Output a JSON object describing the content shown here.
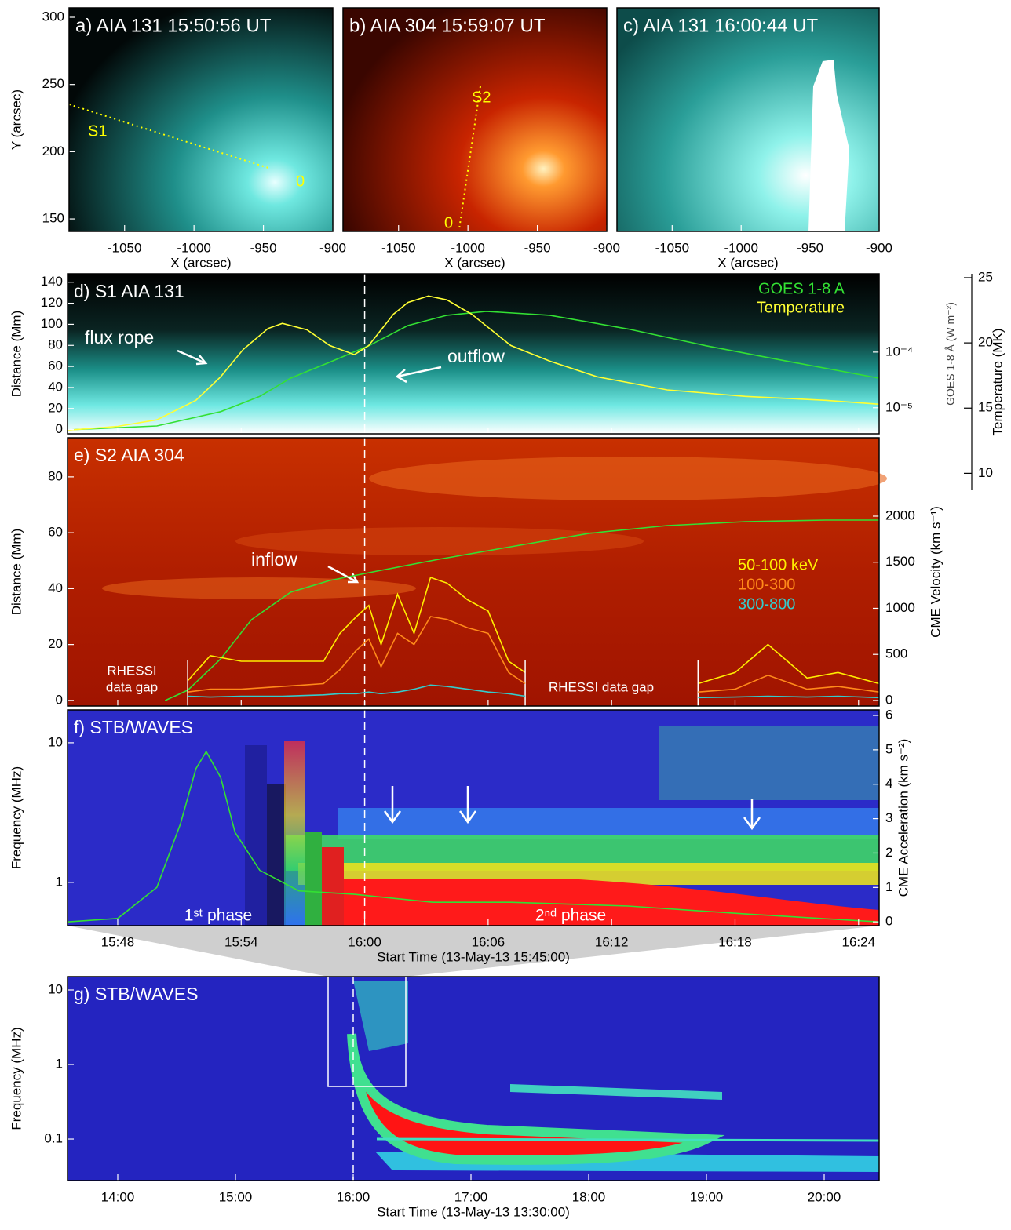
{
  "chart_data": [
    {
      "type": "image",
      "title": "a) AIA 131 15:50:56 UT",
      "xlabel": "X (arcsec)",
      "ylabel": "Y (arcsec)",
      "xlim": [
        -1090,
        -900
      ],
      "xticks": [
        -1050,
        -1000,
        -950,
        -900
      ],
      "ylim": [
        140.7,
        307
      ],
      "yticks": [
        150,
        200,
        250,
        300
      ],
      "annotations": [
        "S1",
        "0"
      ]
    },
    {
      "type": "image",
      "title": "b) AIA 304 15:59:07 UT",
      "xlabel": "X (arcsec)",
      "xlim": [
        -1090,
        -900
      ],
      "xticks": [
        -1050,
        -1000,
        -950,
        -900
      ],
      "annotations": [
        "S2",
        "0"
      ]
    },
    {
      "type": "image",
      "title": "c) AIA 131 16:00:44 UT",
      "xlabel": "X (arcsec)",
      "xlim": [
        -1090,
        -900
      ],
      "xticks": [
        -1050,
        -1000,
        -950,
        -900
      ]
    },
    {
      "type": "line",
      "title": "d) S1 AIA 131",
      "ylabel": "Distance (Mm)",
      "y2label": "GOES 1-8 Å (W m⁻²)",
      "y3label": "Temperature (MK)",
      "xlim": [
        0.56,
        40
      ],
      "ylim": [
        -4,
        148
      ],
      "yticks": [
        0,
        20,
        40,
        60,
        80,
        100,
        120,
        140
      ],
      "y2lim": [
        3.4e-06,
        0.00256
      ],
      "y2log": true,
      "y2ticks": [
        {
          "value": 1e-05,
          "label": "10⁻⁵"
        },
        {
          "value": 0.0001,
          "label": "10⁻⁴"
        }
      ],
      "y3lim": [
        8.7,
        25.3
      ],
      "y3ticks": [
        10,
        15,
        20,
        25
      ],
      "vline": 15,
      "annotations": [
        "flux rope",
        "outflow"
      ],
      "series": [
        {
          "name": "GOES 1-8 A",
          "color": "#33e033",
          "axis": "y2",
          "x": [
            0.56,
            4.9,
            8.0,
            9.9,
            11.4,
            13.3,
            15.2,
            17.1,
            19.0,
            20.9,
            24.0,
            27.8,
            31.6,
            35.4,
            40.0
          ],
          "values": [
            4e-06,
            4.7e-06,
            8.5e-06,
            1.6e-05,
            3.4e-05,
            6.6e-05,
            0.00013,
            0.0003,
            0.00046,
            0.00054,
            0.00046,
            0.00026,
            0.00013,
            7e-05,
            3.4e-05
          ]
        },
        {
          "name": "Temperature",
          "color": "#ffff33",
          "axis": "y3",
          "x": [
            0.56,
            3,
            4.9,
            6.8,
            8,
            9.1,
            10.3,
            11,
            12.2,
            13.3,
            14.5,
            15.2,
            16.4,
            17.1,
            18.1,
            19,
            20.2,
            22.1,
            24,
            26.3,
            29.7,
            33.5,
            37.4,
            40
          ],
          "values": [
            13.3,
            13.6,
            14.1,
            15.6,
            17.4,
            19.5,
            21.1,
            21.5,
            21.0,
            19.8,
            19.1,
            19.8,
            22.2,
            23.1,
            23.6,
            23.3,
            22.2,
            19.8,
            18.6,
            17.4,
            16.4,
            15.9,
            15.6,
            15.3
          ]
        }
      ]
    },
    {
      "type": "line",
      "title": "e) S2 AIA 304",
      "ylabel": "Distance (Mm)",
      "y2label": "CME Velocity (km s⁻¹)",
      "xlim": [
        0.56,
        40
      ],
      "ylim": [
        -2,
        94
      ],
      "yticks": [
        0,
        20,
        40,
        60,
        80
      ],
      "y2lim": [
        -60,
        2851
      ],
      "y2ticks": [
        0,
        500,
        1000,
        1500,
        2000
      ],
      "vline": 15,
      "annotations": [
        "inflow",
        "RHESSI",
        "data gap",
        "RHESSI data gap"
      ],
      "series": [
        {
          "color": "#33e033",
          "axis": "y2",
          "x": [
            5.3,
            6.4,
            8,
            9.5,
            11.4,
            13.3,
            15.6,
            18.6,
            22.1,
            25.9,
            29.7,
            33.5,
            37.4,
            40
          ],
          "values": [
            0,
            111,
            451,
            877,
            1174,
            1302,
            1404,
            1532,
            1668,
            1813,
            1898,
            1940,
            1957,
            1957
          ]
        },
        {
          "name": "50-100 keV",
          "color": "#ffee00",
          "x": [
            6.4,
            7.5,
            9,
            11,
            13,
            13.8,
            14.6,
            15.2,
            15.8,
            16.6,
            17.4,
            18.2,
            19,
            20,
            21,
            22,
            22.8,
            27,
            31.2,
            33,
            34.6,
            36.5,
            38,
            40
          ],
          "values": [
            7,
            16,
            14,
            14,
            14,
            24,
            30,
            34,
            20,
            38,
            24,
            44,
            42,
            36,
            32,
            14,
            10,
            null,
            6,
            10,
            20,
            8,
            10,
            6
          ]
        },
        {
          "name": "100-300",
          "color": "#ff8a1a",
          "x": [
            6.4,
            7.5,
            9,
            11,
            13,
            13.8,
            14.6,
            15.2,
            15.8,
            16.6,
            17.4,
            18.2,
            19,
            20,
            21,
            22,
            22.8,
            27,
            31.2,
            33,
            34.6,
            36.5,
            38,
            40
          ],
          "values": [
            3,
            4,
            4,
            5,
            6,
            11,
            18,
            22,
            12,
            24,
            20,
            30,
            29,
            26,
            24,
            10,
            6,
            null,
            3,
            4,
            9,
            4,
            5,
            3
          ]
        },
        {
          "name": "300-800",
          "color": "#33cccc",
          "x": [
            6.4,
            7.5,
            9,
            11,
            13,
            13.8,
            14.6,
            15.2,
            15.8,
            16.6,
            17.4,
            18.2,
            19,
            20,
            21,
            22,
            22.8,
            27,
            31.2,
            33,
            34.6,
            36.5,
            38,
            40
          ],
          "values": [
            1.5,
            1.2,
            1.5,
            1.5,
            2,
            2.4,
            2.4,
            3,
            2.4,
            3,
            4,
            5.5,
            5,
            4,
            3,
            2.4,
            1.5,
            null,
            1,
            1.2,
            1.5,
            1.2,
            1.5,
            1
          ]
        }
      ]
    },
    {
      "type": "line",
      "title": "f) STB/WAVES",
      "xlabel": "Start Time (13-May-13 15:45:00)",
      "ylabel": "Frequency (MHz)",
      "y2label": "CME Acceleration (km s⁻²)",
      "xlim": [
        0.56,
        40
      ],
      "xticks": [
        {
          "value": 3,
          "label": "15:48"
        },
        {
          "value": 9,
          "label": "15:54"
        },
        {
          "value": 15,
          "label": "16:00"
        },
        {
          "value": 21,
          "label": "16:06"
        },
        {
          "value": 27,
          "label": "16:12"
        },
        {
          "value": 33,
          "label": "16:18"
        },
        {
          "value": 39,
          "label": "16:24"
        }
      ],
      "ylim": [
        0.49,
        17.2
      ],
      "ylog": true,
      "yticks": [
        1,
        10
      ],
      "y2lim": [
        -0.11,
        6.16
      ],
      "y2ticks": [
        0,
        1,
        2,
        3,
        4,
        5,
        6
      ],
      "vline": 15,
      "annotations": [
        "1ˢᵗ phase",
        "2ⁿᵈ phase"
      ],
      "series": [
        {
          "color": "#33e033",
          "axis": "y2",
          "x": [
            0.56,
            3,
            4.9,
            6.05,
            6.8,
            7.3,
            8,
            8.7,
            9.9,
            11.8,
            14.5,
            18.3,
            22.1,
            27.8,
            33.5,
            40
          ],
          "values": [
            0,
            0.1,
            1.0,
            2.85,
            4.45,
            4.95,
            4.2,
            2.6,
            1.5,
            0.9,
            0.8,
            0.57,
            0.57,
            0.46,
            0.23,
            0
          ]
        }
      ]
    },
    {
      "type": "image",
      "title": "g) STB/WAVES",
      "xlabel": "Start Time (13-May-13 13:30:00)",
      "ylabel": "Frequency (MHz)",
      "xlim": [
        4.4,
        418
      ],
      "xticks": [
        {
          "value": 30,
          "label": "14:00"
        },
        {
          "value": 90,
          "label": "15:00"
        },
        {
          "value": 150,
          "label": "16:00"
        },
        {
          "value": 210,
          "label": "17:00"
        },
        {
          "value": 270,
          "label": "18:00"
        },
        {
          "value": 330,
          "label": "19:00"
        },
        {
          "value": 390,
          "label": "20:00"
        }
      ],
      "ylim": [
        0.0277,
        15.1
      ],
      "ylog": true,
      "yticks": [
        0.1,
        1,
        10
      ],
      "vline": 150
    }
  ]
}
